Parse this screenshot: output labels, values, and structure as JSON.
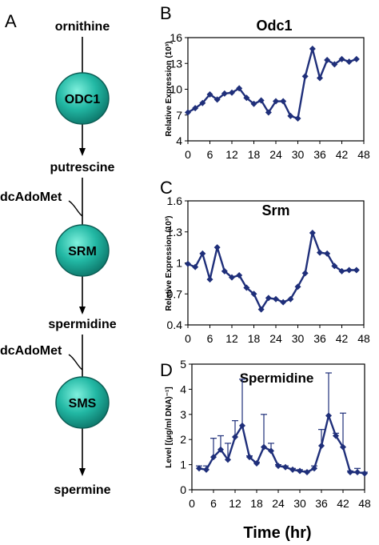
{
  "pathway": {
    "panel_letter": "A",
    "metabolites": [
      "ornithine",
      "putrescine",
      "spermidine",
      "spermine"
    ],
    "enzymes": [
      "ODC1",
      "SRM",
      "SMS"
    ],
    "cofactor": "dcAdoMet",
    "colors": {
      "enzyme_fill": "#20b2a0",
      "enzyme_stroke": "#0c5e55"
    }
  },
  "chart_data": [
    {
      "type": "line",
      "panel_letter": "B",
      "title": "Odc1",
      "xlabel": "",
      "ylabel": "Relative Expression (10³)",
      "xlim": [
        0,
        48
      ],
      "ylim": [
        4,
        16
      ],
      "x_ticks": [
        "0",
        "6",
        "12",
        "18",
        "24",
        "30",
        "36",
        "42",
        "48"
      ],
      "y_ticks": [
        "4",
        "7",
        "10",
        "13",
        "16"
      ],
      "grid": false,
      "color": "#1f2f7a",
      "x": [
        0,
        2,
        4,
        6,
        8,
        10,
        12,
        14,
        16,
        18,
        20,
        22,
        24,
        26,
        28,
        30,
        32,
        34,
        36,
        38,
        40,
        42,
        44,
        46
      ],
      "values": [
        7.3,
        7.8,
        8.4,
        9.4,
        8.8,
        9.5,
        9.6,
        10.1,
        9.0,
        8.3,
        8.7,
        7.3,
        8.6,
        8.6,
        6.9,
        6.6,
        11.5,
        14.7,
        11.3,
        13.4,
        12.9,
        13.5,
        13.2,
        13.5
      ]
    },
    {
      "type": "line",
      "panel_letter": "C",
      "title": "Srm",
      "xlabel": "",
      "ylabel": "Relative Expression (10³)",
      "xlim": [
        0,
        48
      ],
      "ylim": [
        0.4,
        1.6
      ],
      "x_ticks": [
        "0",
        "6",
        "12",
        "18",
        "24",
        "30",
        "36",
        "42",
        "48"
      ],
      "y_ticks": [
        "0.4",
        "0.7",
        "1",
        "1.3",
        "1.6"
      ],
      "grid": false,
      "color": "#1f2f7a",
      "x": [
        0,
        2,
        4,
        6,
        8,
        10,
        12,
        14,
        16,
        18,
        20,
        22,
        24,
        26,
        28,
        30,
        32,
        34,
        36,
        38,
        40,
        42,
        44,
        46
      ],
      "values": [
        0.99,
        0.96,
        1.09,
        0.84,
        1.15,
        0.92,
        0.86,
        0.88,
        0.76,
        0.7,
        0.55,
        0.66,
        0.65,
        0.62,
        0.65,
        0.77,
        0.9,
        1.29,
        1.1,
        1.09,
        0.97,
        0.92,
        0.93,
        0.93
      ]
    },
    {
      "type": "line",
      "panel_letter": "D",
      "title": "Spermidine",
      "xlabel": "Time (hr)",
      "ylabel": "Level [(μg/ml DNA)⁻¹]",
      "xlim": [
        0,
        48
      ],
      "ylim": [
        0,
        5
      ],
      "x_ticks": [
        "0",
        "6",
        "12",
        "18",
        "24",
        "30",
        "36",
        "42",
        "48"
      ],
      "y_ticks": [
        "0",
        "1",
        "2",
        "3",
        "4",
        "5"
      ],
      "grid": false,
      "color": "#1f2f7a",
      "x": [
        2,
        4,
        6,
        8,
        10,
        12,
        14,
        16,
        18,
        20,
        22,
        24,
        26,
        28,
        30,
        32,
        34,
        36,
        38,
        40,
        42,
        44,
        46,
        48
      ],
      "values": [
        0.85,
        0.8,
        1.3,
        1.6,
        1.2,
        2.1,
        2.55,
        1.3,
        1.05,
        1.7,
        1.55,
        0.95,
        0.9,
        0.8,
        0.75,
        0.7,
        0.85,
        1.75,
        2.95,
        2.15,
        1.7,
        0.7,
        0.7,
        0.65
      ],
      "error_upper": [
        0.95,
        0.95,
        2.05,
        2.15,
        1.85,
        2.75,
        4.4,
        1.35,
        1.1,
        3.0,
        1.85,
        1.0,
        0.95,
        0.85,
        0.8,
        0.75,
        0.95,
        2.4,
        4.65,
        2.25,
        3.05,
        0.75,
        0.85,
        0.7
      ]
    }
  ]
}
